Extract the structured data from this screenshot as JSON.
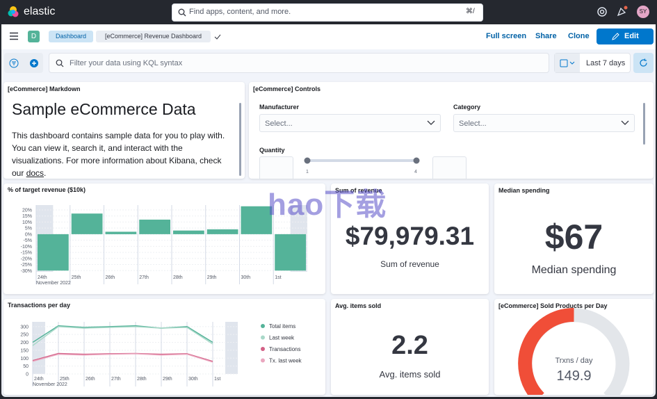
{
  "header": {
    "logo": "elastic",
    "search_placeholder": "Find apps, content, and more.",
    "search_shortcut": "⌘/",
    "avatar": "SY"
  },
  "nav": {
    "space": "D",
    "breadcrumbs": [
      "Dashboard",
      "[eCommerce] Revenue Dashboard"
    ],
    "actions": [
      "Full screen",
      "Share",
      "Clone"
    ],
    "edit": "Edit"
  },
  "query": {
    "placeholder": "Filter your data using KQL syntax",
    "time": "Last 7 days"
  },
  "markdown": {
    "title": "[eCommerce] Markdown",
    "heading": "Sample eCommerce Data",
    "body": "This dashboard contains sample data for you to play with. You can view it, search it, and interact with the visualizations. For more information about Kibana, check our ",
    "link": "docs",
    "end": "."
  },
  "controls": {
    "title": "[eCommerce] Controls",
    "fields": [
      {
        "label": "Manufacturer",
        "placeholder": "Select..."
      },
      {
        "label": "Category",
        "placeholder": "Select..."
      }
    ],
    "quantity": "Quantity",
    "slider_min": "1",
    "slider_max": "4"
  },
  "metrics": [
    {
      "title": "Sum of revenue",
      "value": "$79,979.31",
      "label": "Sum of revenue"
    },
    {
      "title": "Median spending",
      "value": "$67",
      "label": "Median spending"
    },
    {
      "title": "Avg. items sold",
      "value": "2.2",
      "label": "Avg. items sold"
    }
  ],
  "gauge": {
    "title": "[eCommerce] Sold Products per Day",
    "label": "Trxns / day",
    "value": "149.9"
  },
  "watermark": "hao下载",
  "chart_data": [
    {
      "type": "bar",
      "title": "% of target revenue ($10k)",
      "x_sublabel": "November 2022",
      "categories": [
        "24th",
        "25th",
        "26th",
        "27th",
        "28th",
        "29th",
        "30th",
        "1st"
      ],
      "values": [
        -30,
        17,
        2,
        12,
        3,
        4,
        23,
        -30
      ],
      "color": "#54b399",
      "ylim": [
        -31,
        24
      ],
      "yticks": [
        {
          "value": 20,
          "label": "20%"
        },
        {
          "value": 15,
          "label": "15%"
        },
        {
          "value": 10,
          "label": "10%"
        },
        {
          "value": 5,
          "label": "5%"
        },
        {
          "value": 0,
          "label": "0%"
        },
        {
          "value": -5,
          "label": "-5%"
        },
        {
          "value": -10,
          "label": "-10%"
        },
        {
          "value": -15,
          "label": "-15%"
        },
        {
          "value": -20,
          "label": "-20%"
        },
        {
          "value": -25,
          "label": "-25%"
        },
        {
          "value": -30,
          "label": "-30%"
        }
      ],
      "grid": true
    },
    {
      "type": "line",
      "title": "Transactions per day",
      "x_sublabel": "November 2022",
      "categories": [
        "24th",
        "25th",
        "26th",
        "27th",
        "28th",
        "29th",
        "30th",
        "1st"
      ],
      "series": [
        {
          "name": "Total items",
          "color": "#54b399",
          "values": [
            200,
            305,
            295,
            300,
            305,
            290,
            300,
            200
          ]
        },
        {
          "name": "Last week",
          "color": "#a8d8c8",
          "values": [
            180,
            300,
            290,
            295,
            300,
            290,
            295,
            190
          ]
        },
        {
          "name": "Transactions",
          "color": "#d36086",
          "values": [
            85,
            130,
            125,
            128,
            130,
            125,
            128,
            80
          ]
        },
        {
          "name": "Tx. last week",
          "color": "#eaa7bf",
          "values": [
            80,
            125,
            120,
            125,
            128,
            120,
            125,
            75
          ]
        }
      ],
      "ylim": [
        0,
        330
      ],
      "yticks": [
        0,
        50,
        100,
        150,
        200,
        250,
        300
      ],
      "grid": true,
      "legend": "right"
    }
  ]
}
